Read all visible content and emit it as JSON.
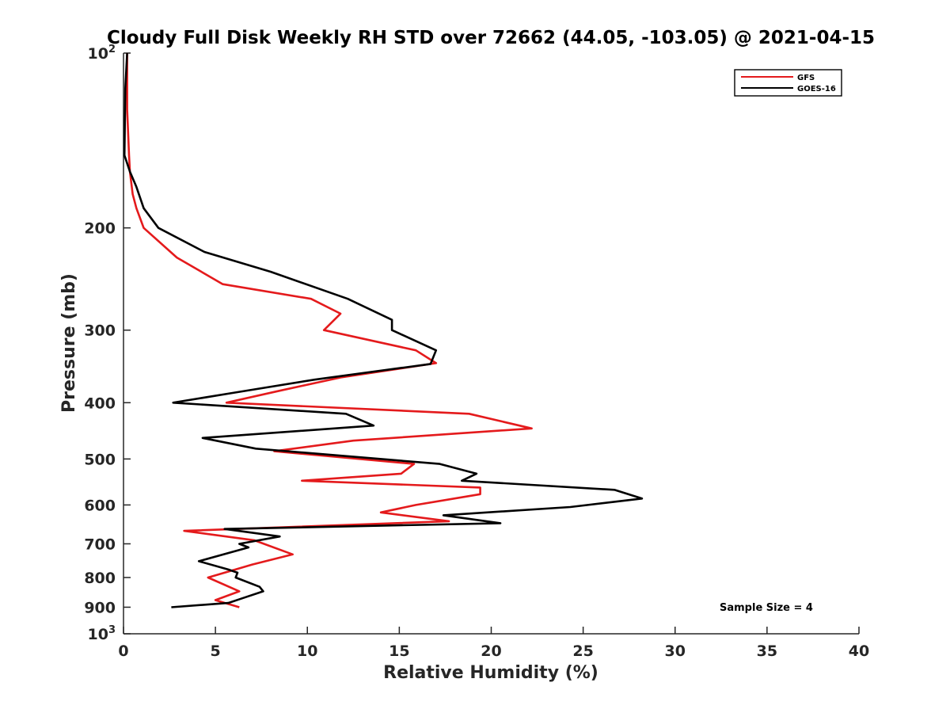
{
  "chart_data": {
    "type": "line",
    "title": "Cloudy Full Disk Weekly RH STD over 72662 (44.05, -103.05) @ 2021-04-15",
    "xlabel": "Relative Humidity (%)",
    "ylabel": "Pressure (mb)",
    "xlim": [
      0,
      40
    ],
    "ylim": [
      100,
      1000
    ],
    "y_scale": "log",
    "y_reversed": true,
    "x_ticks": [
      0,
      5,
      10,
      15,
      20,
      25,
      30,
      35,
      40
    ],
    "y_ticks": [
      {
        "value": 100,
        "base": "10",
        "exp": "2"
      },
      {
        "value": 200,
        "label": "200"
      },
      {
        "value": 300,
        "label": "300"
      },
      {
        "value": 400,
        "label": "400"
      },
      {
        "value": 500,
        "label": "500"
      },
      {
        "value": 600,
        "label": "600"
      },
      {
        "value": 700,
        "label": "700"
      },
      {
        "value": 800,
        "label": "800"
      },
      {
        "value": 900,
        "label": "900"
      },
      {
        "value": 1000,
        "base": "10",
        "exp": "3"
      }
    ],
    "grid": false,
    "legend_position": "top-right",
    "annotation": "Sample Size = 4",
    "series": [
      {
        "name": "GFS",
        "color": "#e41a1c",
        "points": [
          [
            0.2,
            100
          ],
          [
            0.2,
            125
          ],
          [
            0.3,
            150
          ],
          [
            0.35,
            160
          ],
          [
            0.5,
            175
          ],
          [
            0.7,
            185
          ],
          [
            1.1,
            200
          ],
          [
            2.9,
            225
          ],
          [
            5.4,
            250
          ],
          [
            10.2,
            265
          ],
          [
            11.8,
            281
          ],
          [
            10.9,
            300
          ],
          [
            15.9,
            325
          ],
          [
            17.0,
            342
          ],
          [
            11.8,
            362
          ],
          [
            8.4,
            382
          ],
          [
            5.6,
            400
          ],
          [
            18.8,
            418
          ],
          [
            22.2,
            443
          ],
          [
            12.5,
            465
          ],
          [
            8.2,
            485
          ],
          [
            15.8,
            510
          ],
          [
            15.1,
            530
          ],
          [
            9.7,
            545
          ],
          [
            19.4,
            560
          ],
          [
            19.4,
            575
          ],
          [
            15.9,
            600
          ],
          [
            14.0,
            618
          ],
          [
            17.7,
            640
          ],
          [
            3.3,
            665
          ],
          [
            7.1,
            690
          ],
          [
            9.2,
            730
          ],
          [
            7.0,
            760
          ],
          [
            4.6,
            800
          ],
          [
            6.3,
            845
          ],
          [
            5.0,
            875
          ],
          [
            6.3,
            900
          ]
        ]
      },
      {
        "name": "GOES-16",
        "color": "#000000",
        "points": [
          [
            0.2,
            100
          ],
          [
            0.1,
            115
          ],
          [
            0.05,
            150
          ],
          [
            0.35,
            160
          ],
          [
            0.7,
            170
          ],
          [
            1.1,
            185
          ],
          [
            1.9,
            200
          ],
          [
            4.4,
            220
          ],
          [
            8.0,
            238
          ],
          [
            12.2,
            265
          ],
          [
            14.6,
            288
          ],
          [
            14.6,
            300
          ],
          [
            17.0,
            325
          ],
          [
            16.7,
            343
          ],
          [
            10.4,
            365
          ],
          [
            5.9,
            385
          ],
          [
            2.7,
            400
          ],
          [
            12.1,
            418
          ],
          [
            13.6,
            438
          ],
          [
            4.3,
            460
          ],
          [
            7.2,
            480
          ],
          [
            17.2,
            510
          ],
          [
            19.2,
            530
          ],
          [
            18.4,
            545
          ],
          [
            26.7,
            565
          ],
          [
            28.2,
            585
          ],
          [
            24.3,
            605
          ],
          [
            17.4,
            625
          ],
          [
            20.5,
            645
          ],
          [
            5.5,
            660
          ],
          [
            8.5,
            680
          ],
          [
            6.3,
            700
          ],
          [
            6.8,
            710
          ],
          [
            4.1,
            750
          ],
          [
            5.7,
            775
          ],
          [
            6.2,
            785
          ],
          [
            6.1,
            800
          ],
          [
            7.4,
            830
          ],
          [
            7.6,
            845
          ],
          [
            6.4,
            870
          ],
          [
            5.7,
            885
          ],
          [
            2.6,
            900
          ]
        ]
      }
    ]
  }
}
